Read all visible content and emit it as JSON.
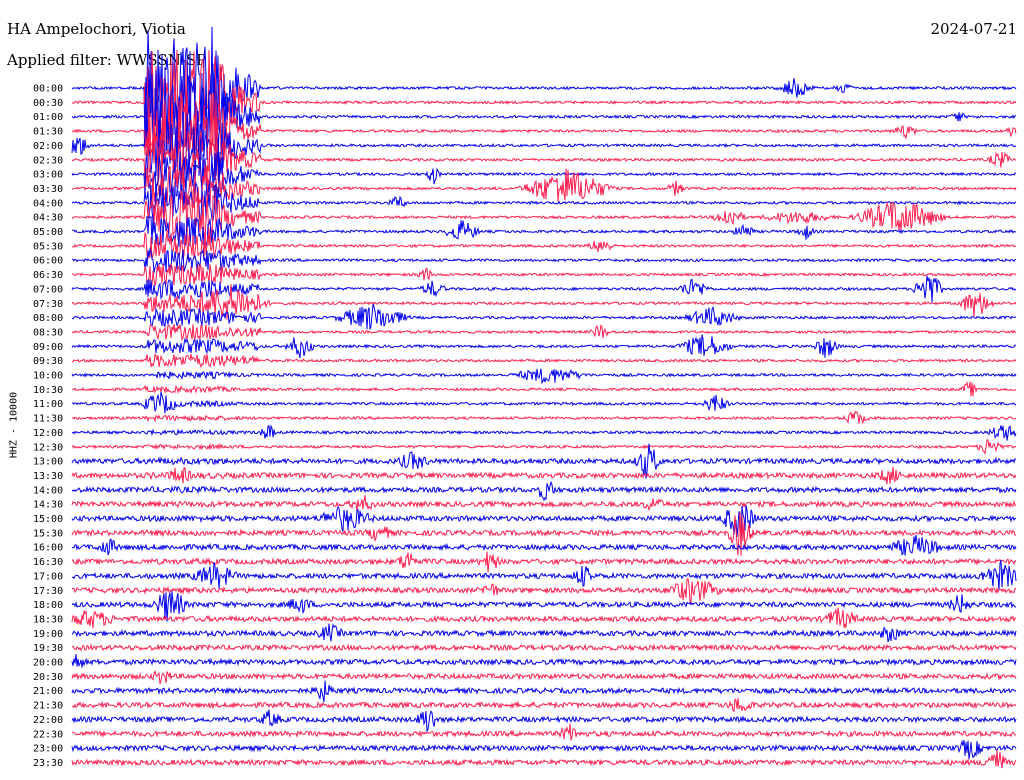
{
  "header": {
    "station": "HA Ampelochori, Viotia",
    "date": "2024-07-21",
    "filter": "Applied filter: WWSSN-SP"
  },
  "chart_data": {
    "type": "line",
    "title": "HA Ampelochori, Viotia",
    "subtitle": "Applied filter: WWSSN-SP",
    "ylabel": "HHZ - 10000",
    "x": [],
    "categories": [
      "00:00",
      "00:30",
      "01:00",
      "01:30",
      "02:00",
      "02:30",
      "03:00",
      "03:30",
      "04:00",
      "04:30",
      "05:00",
      "05:30",
      "06:00",
      "06:30",
      "07:00",
      "07:30",
      "08:00",
      "08:30",
      "09:00",
      "09:30",
      "10:00",
      "10:30",
      "11:00",
      "11:30",
      "12:00",
      "12:30",
      "13:00",
      "13:30",
      "14:00",
      "14:30",
      "15:00",
      "15:30",
      "16:00",
      "16:30",
      "17:00",
      "17:30",
      "18:00",
      "18:30",
      "19:00",
      "19:30",
      "20:00",
      "20:30",
      "21:00",
      "21:30",
      "22:00",
      "22:30",
      "23:00",
      "23:30"
    ],
    "series_colors": [
      "#0000ee",
      "#ff1e4e"
    ],
    "grid": false,
    "legend": "none"
  }
}
